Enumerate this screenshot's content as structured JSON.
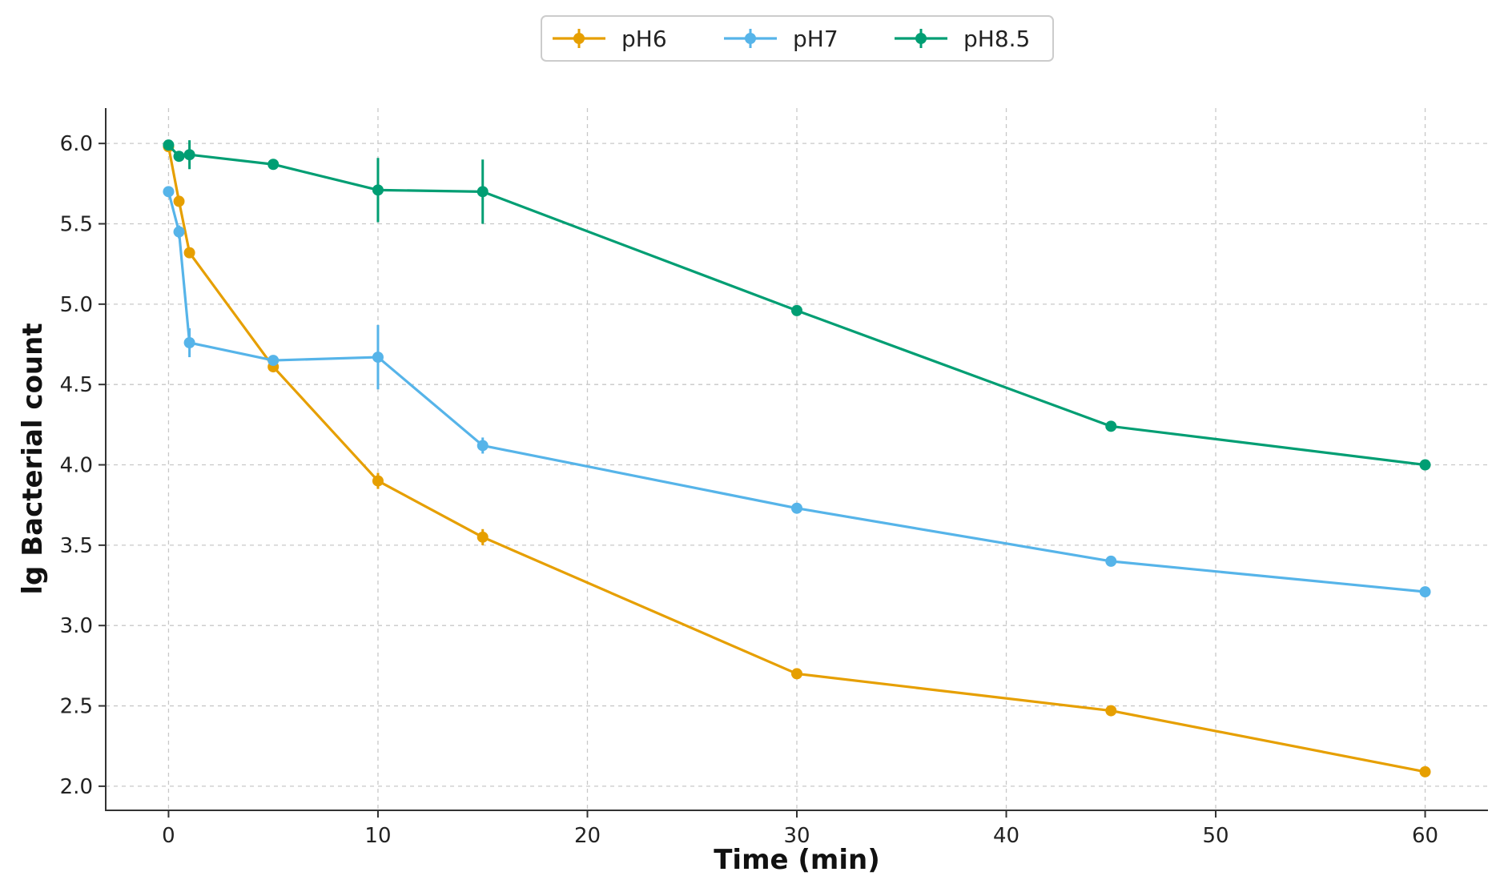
{
  "chart_data": {
    "type": "line",
    "title": "",
    "xlabel": "Time (min)",
    "ylabel": "lg Bacterial count",
    "xlim": [
      -3,
      63
    ],
    "ylim": [
      1.85,
      6.22
    ],
    "grid": true,
    "legend_position": "top-center",
    "x_ticks": [
      0,
      10,
      20,
      30,
      40,
      50,
      60
    ],
    "y_ticks": [
      2.0,
      2.5,
      3.0,
      3.5,
      4.0,
      4.5,
      5.0,
      5.5,
      6.0
    ],
    "x_tick_labels": [
      "0",
      "10",
      "20",
      "30",
      "40",
      "50",
      "60"
    ],
    "y_tick_labels": [
      "2.0",
      "2.5",
      "3.0",
      "3.5",
      "4.0",
      "4.5",
      "5.0",
      "5.5",
      "6.0"
    ],
    "series": [
      {
        "name": "pH6",
        "color": "#E69F00",
        "x": [
          0,
          0.5,
          1,
          5,
          10,
          15,
          30,
          45,
          60
        ],
        "values": [
          5.98,
          5.64,
          5.32,
          4.61,
          3.9,
          3.55,
          2.7,
          2.47,
          2.09
        ],
        "errors": [
          0.02,
          0.03,
          0.03,
          0.02,
          0.05,
          0.05,
          0.02,
          0.02,
          0.02
        ]
      },
      {
        "name": "pH7",
        "color": "#56B4E9",
        "x": [
          0,
          0.5,
          1,
          5,
          10,
          15,
          30,
          45,
          60
        ],
        "values": [
          5.7,
          5.45,
          4.76,
          4.65,
          4.67,
          4.12,
          3.73,
          3.4,
          3.21
        ],
        "errors": [
          0.03,
          0.04,
          0.09,
          0.03,
          0.2,
          0.05,
          0.02,
          0.02,
          0.02
        ]
      },
      {
        "name": "pH8.5",
        "color": "#009E73",
        "x": [
          0,
          0.5,
          1,
          5,
          10,
          15,
          30,
          45,
          60
        ],
        "values": [
          5.99,
          5.92,
          5.93,
          5.87,
          5.71,
          5.7,
          4.96,
          4.24,
          4.0
        ],
        "errors": [
          0.02,
          0.03,
          0.09,
          0.02,
          0.2,
          0.2,
          0.02,
          0.02,
          0.02
        ]
      }
    ]
  }
}
